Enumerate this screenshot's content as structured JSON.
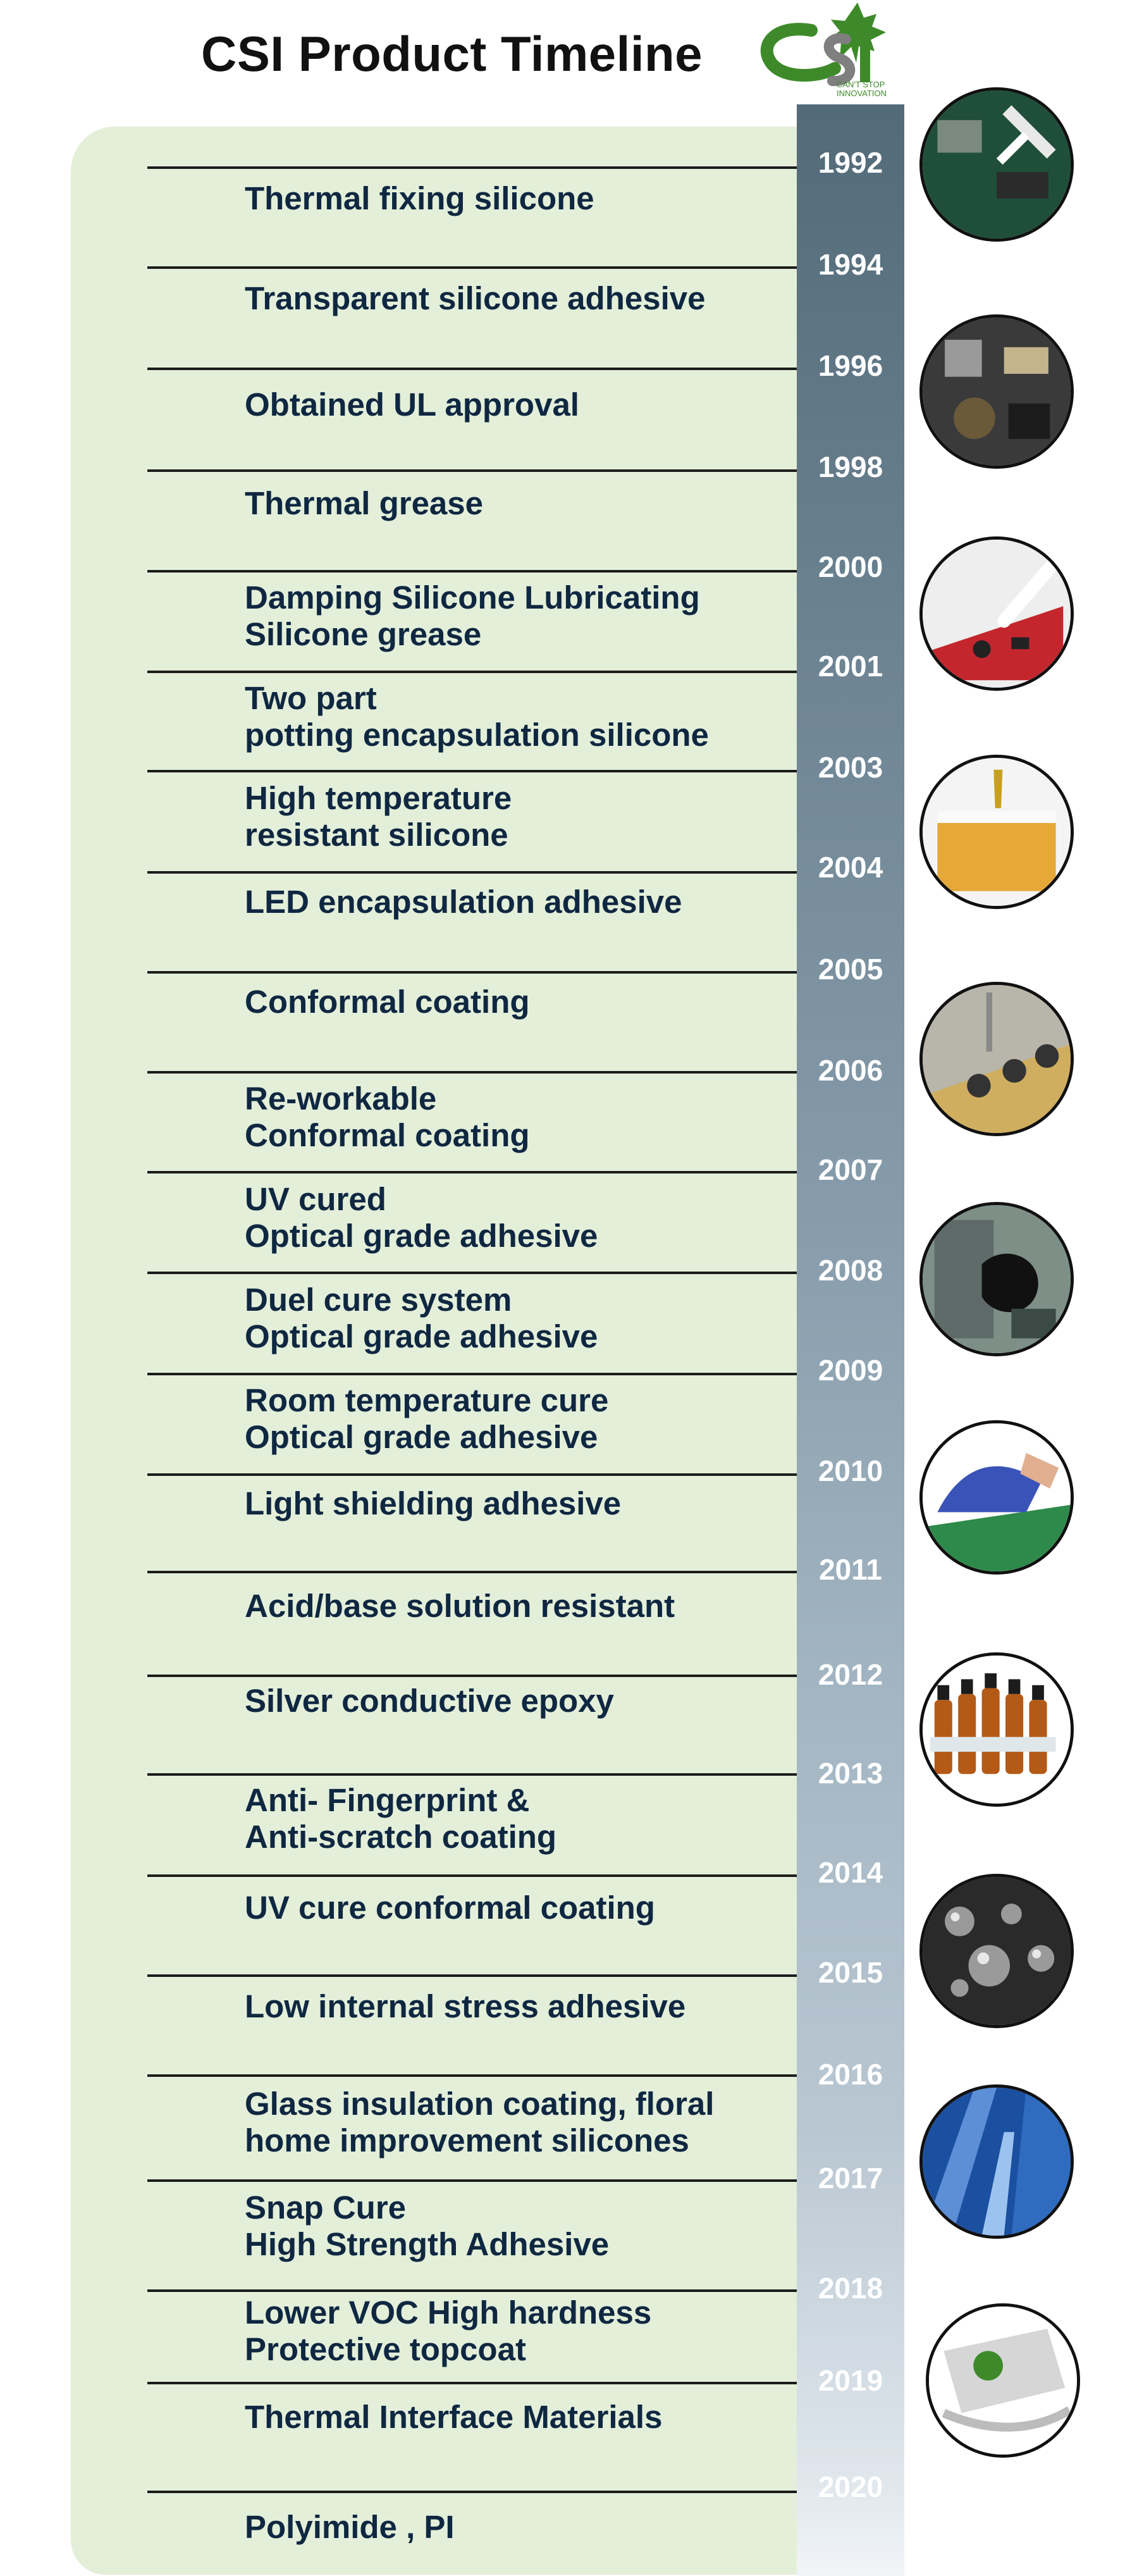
{
  "header": {
    "title": "CSI Product Timeline",
    "logo_letters": "CSI",
    "logo_tagline": [
      "CAN'T STOP",
      "INNOVATION"
    ]
  },
  "colors": {
    "panel_green": "#e3efd9",
    "text_navy": "#0f2741",
    "bar_top": "#536a78",
    "bar_bottom": "#f2f5f8",
    "logo_green": "#3e8a2a"
  },
  "timeline": [
    {
      "year": "1992",
      "lines": [
        "Thermal fixing silicone"
      ]
    },
    {
      "year": "1994",
      "lines": [
        "Transparent silicone adhesive"
      ]
    },
    {
      "year": "1996",
      "lines": [
        "Obtained UL approval"
      ]
    },
    {
      "year": "1998",
      "lines": [
        "Thermal grease"
      ]
    },
    {
      "year": "2000",
      "lines": [
        "Damping Silicone Lubricating",
        "Silicone grease"
      ]
    },
    {
      "year": "2001",
      "lines": [
        "Two part",
        "potting encapsulation silicone"
      ]
    },
    {
      "year": "2003",
      "lines": [
        "High temperature",
        "resistant silicone"
      ]
    },
    {
      "year": "2004",
      "lines": [
        "LED encapsulation adhesive"
      ]
    },
    {
      "year": "2005",
      "lines": [
        "Conformal coating"
      ]
    },
    {
      "year": "2006",
      "lines": [
        "Re-workable",
        "Conformal coating"
      ]
    },
    {
      "year": "2007",
      "lines": [
        "UV cured",
        "Optical grade adhesive"
      ]
    },
    {
      "year": "2008",
      "lines": [
        "Duel cure system",
        "Optical grade adhesive"
      ]
    },
    {
      "year": "2009",
      "lines": [
        "Room temperature cure",
        "Optical grade adhesive"
      ]
    },
    {
      "year": "2010",
      "lines": [
        "Light shielding adhesive"
      ]
    },
    {
      "year": "2011",
      "lines": [
        "Acid/base solution resistant"
      ]
    },
    {
      "year": "2012",
      "lines": [
        "Silver conductive epoxy"
      ]
    },
    {
      "year": "2013",
      "lines": [
        "Anti- Fingerprint &",
        "Anti-scratch coating"
      ]
    },
    {
      "year": "2014",
      "lines": [
        "UV cure conformal coating"
      ]
    },
    {
      "year": "2015",
      "lines": [
        "Low internal stress adhesive"
      ]
    },
    {
      "year": "2016",
      "lines": [
        "Glass insulation coating, floral",
        "home improvement silicones"
      ]
    },
    {
      "year": "2017",
      "lines": [
        "Snap Cure",
        "High Strength Adhesive"
      ]
    },
    {
      "year": "2018",
      "lines": [
        "Lower VOC High hardness",
        "Protective topcoat"
      ]
    },
    {
      "year": "2019",
      "lines": [
        "Thermal Interface Materials"
      ]
    },
    {
      "year": "2020",
      "lines": [
        "Polyimide , PI"
      ]
    }
  ],
  "photos": [
    {
      "name": "circuit-board-dispensing-photo"
    },
    {
      "name": "electronic-components-photo"
    },
    {
      "name": "red-pcb-syringe-photo"
    },
    {
      "name": "amber-resin-potting-photo"
    },
    {
      "name": "led-dispensing-photo"
    },
    {
      "name": "black-encapsulant-board-photo"
    },
    {
      "name": "blue-glove-board-photo"
    },
    {
      "name": "amber-bottles-photo"
    },
    {
      "name": "water-droplets-photo"
    },
    {
      "name": "glass-skyscraper-photo"
    },
    {
      "name": "pi-film-roll-photo"
    }
  ]
}
